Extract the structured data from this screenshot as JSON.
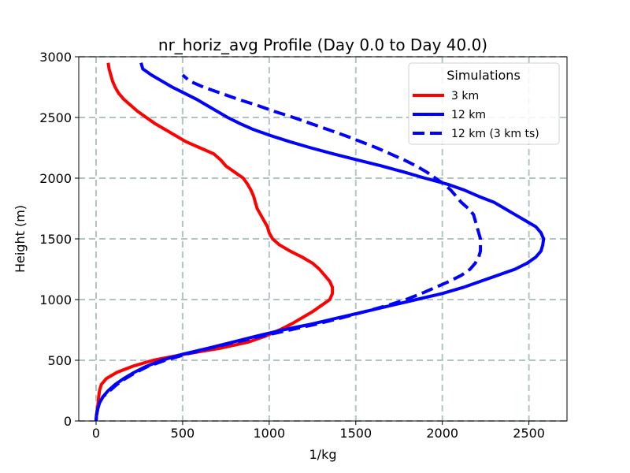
{
  "chart_data": {
    "type": "line",
    "title": "nr_horiz_avg Profile (Day 0.0 to Day 40.0)",
    "xlabel": "1/kg",
    "ylabel": "Height (m)",
    "xlim": [
      -100,
      2720
    ],
    "ylim": [
      0,
      3000
    ],
    "xticks": [
      0,
      500,
      1000,
      1500,
      2000,
      2500
    ],
    "yticks": [
      0,
      500,
      1000,
      1500,
      2000,
      2500,
      3000
    ],
    "grid": true,
    "legend": {
      "title": "Simulations",
      "placement": "top-right"
    },
    "series": [
      {
        "name": "3 km",
        "color": "#ff0000",
        "style": "solid",
        "points": [
          [
            0,
            0
          ],
          [
            3,
            50
          ],
          [
            8,
            100
          ],
          [
            12,
            150
          ],
          [
            15,
            200
          ],
          [
            20,
            250
          ],
          [
            30,
            300
          ],
          [
            60,
            350
          ],
          [
            120,
            400
          ],
          [
            210,
            450
          ],
          [
            330,
            500
          ],
          [
            510,
            550
          ],
          [
            720,
            600
          ],
          [
            880,
            650
          ],
          [
            980,
            700
          ],
          [
            1060,
            750
          ],
          [
            1130,
            800
          ],
          [
            1190,
            850
          ],
          [
            1250,
            900
          ],
          [
            1300,
            950
          ],
          [
            1350,
            1000
          ],
          [
            1365,
            1050
          ],
          [
            1365,
            1100
          ],
          [
            1350,
            1150
          ],
          [
            1320,
            1200
          ],
          [
            1290,
            1250
          ],
          [
            1250,
            1300
          ],
          [
            1190,
            1350
          ],
          [
            1120,
            1400
          ],
          [
            1060,
            1450
          ],
          [
            1020,
            1500
          ],
          [
            1000,
            1550
          ],
          [
            990,
            1600
          ],
          [
            970,
            1650
          ],
          [
            950,
            1700
          ],
          [
            930,
            1750
          ],
          [
            920,
            1800
          ],
          [
            910,
            1850
          ],
          [
            895,
            1900
          ],
          [
            875,
            1950
          ],
          [
            850,
            2000
          ],
          [
            800,
            2050
          ],
          [
            750,
            2100
          ],
          [
            720,
            2150
          ],
          [
            680,
            2200
          ],
          [
            600,
            2250
          ],
          [
            520,
            2300
          ],
          [
            460,
            2350
          ],
          [
            400,
            2400
          ],
          [
            340,
            2450
          ],
          [
            290,
            2500
          ],
          [
            240,
            2550
          ],
          [
            200,
            2600
          ],
          [
            160,
            2650
          ],
          [
            130,
            2700
          ],
          [
            110,
            2750
          ],
          [
            95,
            2800
          ],
          [
            85,
            2850
          ],
          [
            75,
            2900
          ],
          [
            70,
            2950
          ]
        ]
      },
      {
        "name": "12 km",
        "color": "#0000ff",
        "style": "solid",
        "points": [
          [
            0,
            0
          ],
          [
            3,
            50
          ],
          [
            10,
            100
          ],
          [
            20,
            150
          ],
          [
            40,
            200
          ],
          [
            70,
            250
          ],
          [
            110,
            300
          ],
          [
            160,
            350
          ],
          [
            220,
            400
          ],
          [
            290,
            450
          ],
          [
            380,
            500
          ],
          [
            500,
            550
          ],
          [
            650,
            600
          ],
          [
            790,
            650
          ],
          [
            930,
            700
          ],
          [
            1080,
            750
          ],
          [
            1250,
            800
          ],
          [
            1400,
            850
          ],
          [
            1550,
            900
          ],
          [
            1700,
            950
          ],
          [
            1850,
            1000
          ],
          [
            2000,
            1050
          ],
          [
            2120,
            1100
          ],
          [
            2220,
            1150
          ],
          [
            2320,
            1200
          ],
          [
            2420,
            1250
          ],
          [
            2490,
            1300
          ],
          [
            2540,
            1350
          ],
          [
            2570,
            1400
          ],
          [
            2580,
            1450
          ],
          [
            2585,
            1500
          ],
          [
            2570,
            1550
          ],
          [
            2540,
            1600
          ],
          [
            2480,
            1650
          ],
          [
            2420,
            1700
          ],
          [
            2360,
            1750
          ],
          [
            2300,
            1800
          ],
          [
            2210,
            1850
          ],
          [
            2130,
            1900
          ],
          [
            2030,
            1950
          ],
          [
            1900,
            2000
          ],
          [
            1780,
            2050
          ],
          [
            1650,
            2100
          ],
          [
            1510,
            2150
          ],
          [
            1370,
            2200
          ],
          [
            1240,
            2250
          ],
          [
            1120,
            2300
          ],
          [
            1010,
            2350
          ],
          [
            910,
            2400
          ],
          [
            830,
            2450
          ],
          [
            760,
            2500
          ],
          [
            700,
            2550
          ],
          [
            640,
            2600
          ],
          [
            580,
            2650
          ],
          [
            510,
            2700
          ],
          [
            440,
            2750
          ],
          [
            380,
            2800
          ],
          [
            320,
            2850
          ],
          [
            270,
            2900
          ],
          [
            260,
            2950
          ]
        ]
      },
      {
        "name": "12 km (3 km ts)",
        "color": "#0000ff",
        "style": "dashed",
        "points": [
          [
            0,
            0
          ],
          [
            3,
            50
          ],
          [
            10,
            100
          ],
          [
            20,
            150
          ],
          [
            40,
            200
          ],
          [
            80,
            250
          ],
          [
            120,
            300
          ],
          [
            170,
            350
          ],
          [
            230,
            400
          ],
          [
            300,
            450
          ],
          [
            400,
            500
          ],
          [
            520,
            550
          ],
          [
            660,
            600
          ],
          [
            810,
            650
          ],
          [
            960,
            700
          ],
          [
            1120,
            750
          ],
          [
            1280,
            800
          ],
          [
            1420,
            850
          ],
          [
            1550,
            900
          ],
          [
            1680,
            950
          ],
          [
            1790,
            1000
          ],
          [
            1880,
            1050
          ],
          [
            1960,
            1100
          ],
          [
            2040,
            1150
          ],
          [
            2110,
            1200
          ],
          [
            2160,
            1250
          ],
          [
            2190,
            1300
          ],
          [
            2210,
            1350
          ],
          [
            2220,
            1400
          ],
          [
            2220,
            1450
          ],
          [
            2220,
            1500
          ],
          [
            2210,
            1550
          ],
          [
            2200,
            1600
          ],
          [
            2190,
            1650
          ],
          [
            2180,
            1700
          ],
          [
            2150,
            1750
          ],
          [
            2110,
            1800
          ],
          [
            2080,
            1850
          ],
          [
            2050,
            1900
          ],
          [
            2010,
            1950
          ],
          [
            1960,
            2000
          ],
          [
            1910,
            2050
          ],
          [
            1850,
            2100
          ],
          [
            1780,
            2150
          ],
          [
            1700,
            2200
          ],
          [
            1620,
            2250
          ],
          [
            1530,
            2300
          ],
          [
            1440,
            2350
          ],
          [
            1340,
            2400
          ],
          [
            1240,
            2450
          ],
          [
            1140,
            2500
          ],
          [
            1030,
            2550
          ],
          [
            930,
            2600
          ],
          [
            820,
            2650
          ],
          [
            720,
            2700
          ],
          [
            620,
            2750
          ],
          [
            540,
            2800
          ],
          [
            500,
            2850
          ]
        ]
      }
    ]
  }
}
